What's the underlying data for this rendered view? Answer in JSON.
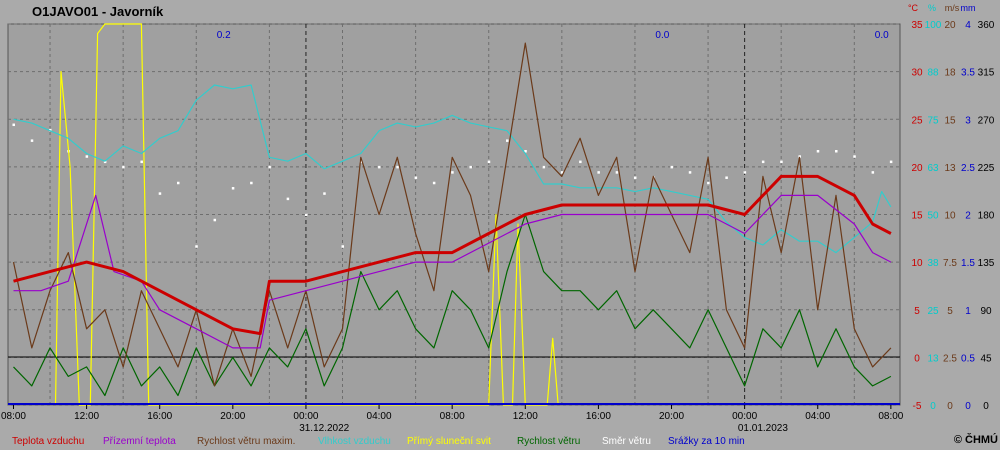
{
  "chart_data": {
    "type": "line",
    "title": "O1JAVO01 - Javorník",
    "copyright": "© ČHMÚ",
    "time_ticks": [
      {
        "label": "08:00",
        "h": 0
      },
      {
        "label": "12:00",
        "h": 4
      },
      {
        "label": "16:00",
        "h": 8
      },
      {
        "label": "20:00",
        "h": 12
      },
      {
        "label": "00:00",
        "h": 16
      },
      {
        "label": "04:00",
        "h": 20
      },
      {
        "label": "08:00",
        "h": 24
      },
      {
        "label": "12:00",
        "h": 28
      },
      {
        "label": "16:00",
        "h": 32
      },
      {
        "label": "20:00",
        "h": 36
      },
      {
        "label": "00:00",
        "h": 40
      },
      {
        "label": "04:00",
        "h": 44
      },
      {
        "label": "08:00",
        "h": 48
      }
    ],
    "date_labels": [
      {
        "label": "31.12.2022",
        "h": 17
      },
      {
        "label": "01.01.2023",
        "h": 41
      }
    ],
    "x_range_hours": [
      -0.3,
      48.5
    ],
    "grid": true,
    "axes": {
      "temperature": {
        "unit": "°C",
        "ticks": [
          "35",
          "30",
          "25",
          "20",
          "15",
          "10",
          "5",
          "0",
          "-5"
        ],
        "range": [
          -5,
          35
        ],
        "color": "#cc0000"
      },
      "humidity": {
        "unit": "%",
        "ticks": [
          "100",
          "88",
          "75",
          "63",
          "50",
          "38",
          "25",
          "13",
          "0"
        ],
        "range": [
          0,
          100
        ],
        "color": "#00cccc"
      },
      "wind_max": {
        "unit": "m/s",
        "ticks": [
          "20",
          "18",
          "15",
          "13",
          "10",
          "7.5",
          "5",
          "2.5",
          "0"
        ],
        "range": [
          0,
          20
        ],
        "color": "#8b4513"
      },
      "precipitation": {
        "unit": "mm",
        "ticks": [
          "4",
          "3.5",
          "3",
          "2.5",
          "2",
          "1.5",
          "1",
          "0.5",
          "0"
        ],
        "range": [
          0,
          4
        ],
        "color": "#0000cc"
      },
      "wind_dir": {
        "ticks": [
          "360",
          "315",
          "270",
          "225",
          "180",
          "135",
          "90",
          "45",
          "0"
        ],
        "range": [
          0,
          360
        ],
        "color": "#ffffff"
      }
    },
    "precip_labels": [
      {
        "label": "0.2",
        "h": 11.5
      },
      {
        "label": "0.0",
        "h": 35.5
      },
      {
        "label": "0.0",
        "h": 47.5
      }
    ],
    "series": [
      {
        "key": "temp",
        "name": "Teplota vzduchu",
        "color": "#cc0000",
        "axis": "temperature",
        "points": [
          [
            0,
            8
          ],
          [
            2,
            9
          ],
          [
            4,
            10
          ],
          [
            6,
            9
          ],
          [
            8,
            7
          ],
          [
            10,
            5
          ],
          [
            12,
            3
          ],
          [
            13.5,
            2.5
          ],
          [
            14,
            8
          ],
          [
            16,
            8
          ],
          [
            18,
            9
          ],
          [
            20,
            10
          ],
          [
            22,
            11
          ],
          [
            24,
            11
          ],
          [
            26,
            13
          ],
          [
            28,
            15
          ],
          [
            30,
            16
          ],
          [
            32,
            16
          ],
          [
            34,
            16
          ],
          [
            36,
            16
          ],
          [
            38,
            16
          ],
          [
            40,
            15
          ],
          [
            42,
            19
          ],
          [
            44,
            19
          ],
          [
            46,
            17
          ],
          [
            47,
            14
          ],
          [
            48,
            13
          ]
        ]
      },
      {
        "key": "ground",
        "name": "Přízemní teplota",
        "color": "#9900cc",
        "axis": "temperature",
        "points": [
          [
            0,
            7
          ],
          [
            1.5,
            7
          ],
          [
            3,
            8
          ],
          [
            4.5,
            17
          ],
          [
            5.5,
            9
          ],
          [
            7,
            8
          ],
          [
            8,
            5
          ],
          [
            10,
            3
          ],
          [
            12,
            1
          ],
          [
            13.5,
            1
          ],
          [
            14,
            6
          ],
          [
            16,
            7
          ],
          [
            18,
            8
          ],
          [
            20,
            9
          ],
          [
            22,
            10
          ],
          [
            24,
            10
          ],
          [
            26,
            12
          ],
          [
            28,
            14
          ],
          [
            30,
            15
          ],
          [
            32,
            15
          ],
          [
            34,
            15
          ],
          [
            36,
            15
          ],
          [
            38,
            15
          ],
          [
            40,
            13
          ],
          [
            42,
            17
          ],
          [
            44,
            17
          ],
          [
            46,
            14
          ],
          [
            47,
            11
          ],
          [
            48,
            10
          ]
        ]
      },
      {
        "key": "windmax",
        "name": "Rychlost větru maxim.",
        "color": "#6b3a1a",
        "axis": "wind_max",
        "points": [
          [
            0,
            7.5
          ],
          [
            1,
            3
          ],
          [
            2,
            6
          ],
          [
            3,
            8
          ],
          [
            4,
            4
          ],
          [
            5,
            5
          ],
          [
            6,
            2
          ],
          [
            7,
            6
          ],
          [
            8,
            4
          ],
          [
            9,
            2
          ],
          [
            10,
            5
          ],
          [
            11,
            1
          ],
          [
            12,
            4
          ],
          [
            13,
            1.5
          ],
          [
            14,
            6
          ],
          [
            15,
            3
          ],
          [
            16,
            6
          ],
          [
            17,
            2
          ],
          [
            18,
            4
          ],
          [
            19,
            13
          ],
          [
            20,
            10
          ],
          [
            21,
            13
          ],
          [
            22,
            9
          ],
          [
            23,
            6
          ],
          [
            24,
            13
          ],
          [
            25,
            11
          ],
          [
            26,
            7
          ],
          [
            27,
            13
          ],
          [
            28,
            19
          ],
          [
            29,
            13
          ],
          [
            30,
            12
          ],
          [
            31,
            14
          ],
          [
            32,
            11
          ],
          [
            33,
            13
          ],
          [
            34,
            7
          ],
          [
            35,
            12
          ],
          [
            36,
            10
          ],
          [
            37,
            8
          ],
          [
            38,
            13
          ],
          [
            39,
            5
          ],
          [
            40,
            3
          ],
          [
            41,
            12
          ],
          [
            42,
            8
          ],
          [
            43,
            13
          ],
          [
            44,
            5
          ],
          [
            45,
            11
          ],
          [
            46,
            4
          ],
          [
            47,
            2
          ],
          [
            48,
            3
          ]
        ]
      },
      {
        "key": "humidity",
        "name": "Vlhkost vzduchu",
        "color": "#33cccc",
        "axis": "humidity",
        "points": [
          [
            0,
            75
          ],
          [
            1,
            74
          ],
          [
            2,
            72
          ],
          [
            3,
            70
          ],
          [
            4,
            66
          ],
          [
            5,
            64
          ],
          [
            6,
            68
          ],
          [
            7,
            66
          ],
          [
            8,
            70
          ],
          [
            9,
            72
          ],
          [
            10,
            80
          ],
          [
            11,
            84
          ],
          [
            12,
            83
          ],
          [
            13,
            84
          ],
          [
            14,
            65
          ],
          [
            15,
            64
          ],
          [
            16,
            66
          ],
          [
            17,
            62
          ],
          [
            18,
            64
          ],
          [
            19,
            66
          ],
          [
            20,
            72
          ],
          [
            21,
            74
          ],
          [
            22,
            73
          ],
          [
            23,
            74
          ],
          [
            24,
            76
          ],
          [
            25,
            74
          ],
          [
            26,
            73
          ],
          [
            27,
            72
          ],
          [
            28,
            66
          ],
          [
            29,
            58
          ],
          [
            30,
            58
          ],
          [
            31,
            57
          ],
          [
            32,
            57
          ],
          [
            33,
            57
          ],
          [
            34,
            56
          ],
          [
            35,
            57
          ],
          [
            36,
            56
          ],
          [
            37,
            55
          ],
          [
            38,
            54
          ],
          [
            39,
            48
          ],
          [
            40,
            44
          ],
          [
            41,
            42
          ],
          [
            42,
            46
          ],
          [
            43,
            43
          ],
          [
            44,
            43
          ],
          [
            45,
            40
          ],
          [
            46,
            44
          ],
          [
            47,
            48
          ],
          [
            47.5,
            56
          ],
          [
            48,
            52
          ]
        ]
      },
      {
        "key": "sun",
        "name": "Přímý sluneční svit",
        "color": "#ffff00",
        "axis": "temperature",
        "points": [
          [
            2.3,
            -5
          ],
          [
            2.6,
            30
          ],
          [
            3.1,
            20
          ],
          [
            3.6,
            -5
          ],
          [
            4.2,
            -5
          ],
          [
            4.6,
            34
          ],
          [
            5,
            35
          ],
          [
            7,
            35
          ],
          [
            7.4,
            -5
          ],
          [
            26,
            -5
          ],
          [
            26.4,
            15
          ],
          [
            26.8,
            -5
          ],
          [
            27.3,
            -5
          ],
          [
            27.6,
            14
          ],
          [
            28,
            -5
          ],
          [
            29.2,
            -5
          ],
          [
            29.5,
            2
          ],
          [
            29.8,
            -5
          ]
        ]
      },
      {
        "key": "wind",
        "name": "Rychlost větru",
        "color": "#006600",
        "axis": "wind_max",
        "points": [
          [
            0,
            2
          ],
          [
            1,
            1
          ],
          [
            2,
            3
          ],
          [
            3,
            1.5
          ],
          [
            4,
            2
          ],
          [
            5,
            0.5
          ],
          [
            6,
            3
          ],
          [
            7,
            1
          ],
          [
            8,
            2
          ],
          [
            9,
            0.5
          ],
          [
            10,
            3
          ],
          [
            11,
            1
          ],
          [
            12,
            2.5
          ],
          [
            13,
            1
          ],
          [
            14,
            3
          ],
          [
            15,
            2
          ],
          [
            16,
            4
          ],
          [
            17,
            1
          ],
          [
            18,
            3
          ],
          [
            19,
            7
          ],
          [
            20,
            5
          ],
          [
            21,
            6
          ],
          [
            22,
            4
          ],
          [
            23,
            3
          ],
          [
            24,
            6
          ],
          [
            25,
            5
          ],
          [
            26,
            3
          ],
          [
            27,
            7
          ],
          [
            28,
            10
          ],
          [
            29,
            7
          ],
          [
            30,
            6
          ],
          [
            31,
            6
          ],
          [
            32,
            5
          ],
          [
            33,
            6
          ],
          [
            34,
            4
          ],
          [
            35,
            5
          ],
          [
            36,
            4
          ],
          [
            37,
            3
          ],
          [
            38,
            5
          ],
          [
            39,
            3
          ],
          [
            40,
            1
          ],
          [
            41,
            4
          ],
          [
            42,
            3
          ],
          [
            43,
            5
          ],
          [
            44,
            2
          ],
          [
            45,
            4
          ],
          [
            46,
            2
          ],
          [
            47,
            1
          ],
          [
            48,
            1.5
          ]
        ]
      },
      {
        "key": "dir",
        "name": "Směr větru",
        "color": "#ffffff",
        "axis": "wind_dir",
        "style": "dots",
        "points": [
          [
            0,
            265
          ],
          [
            1,
            250
          ],
          [
            2,
            260
          ],
          [
            3,
            240
          ],
          [
            4,
            235
          ],
          [
            5,
            230
          ],
          [
            6,
            225
          ],
          [
            7,
            230
          ],
          [
            8,
            200
          ],
          [
            9,
            210
          ],
          [
            10,
            150
          ],
          [
            11,
            175
          ],
          [
            12,
            205
          ],
          [
            13,
            210
          ],
          [
            14,
            225
          ],
          [
            15,
            195
          ],
          [
            16,
            180
          ],
          [
            17,
            200
          ],
          [
            18,
            150
          ],
          [
            19,
            230
          ],
          [
            20,
            225
          ],
          [
            21,
            225
          ],
          [
            22,
            215
          ],
          [
            23,
            210
          ],
          [
            24,
            220
          ],
          [
            25,
            225
          ],
          [
            26,
            230
          ],
          [
            27,
            250
          ],
          [
            28,
            240
          ],
          [
            29,
            225
          ],
          [
            30,
            220
          ],
          [
            31,
            230
          ],
          [
            32,
            220
          ],
          [
            33,
            220
          ],
          [
            34,
            215
          ],
          [
            35,
            215
          ],
          [
            36,
            225
          ],
          [
            37,
            220
          ],
          [
            38,
            210
          ],
          [
            39,
            215
          ],
          [
            40,
            220
          ],
          [
            41,
            230
          ],
          [
            42,
            230
          ],
          [
            43,
            235
          ],
          [
            44,
            240
          ],
          [
            45,
            240
          ],
          [
            46,
            235
          ],
          [
            47,
            220
          ],
          [
            48,
            230
          ]
        ]
      },
      {
        "key": "precip",
        "name": "Srážky za 10 min",
        "color": "#0000cc",
        "axis": "precipitation",
        "points": [
          [
            0,
            0
          ],
          [
            48,
            0
          ]
        ]
      }
    ]
  }
}
